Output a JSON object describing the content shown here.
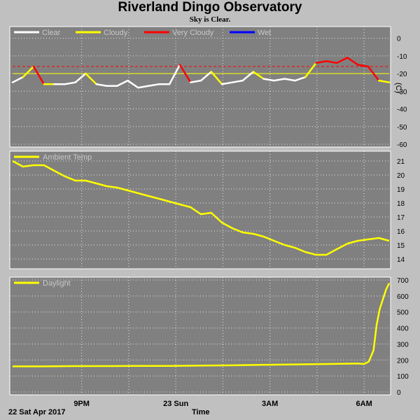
{
  "header": {
    "title": "Riverland Dingo Observatory",
    "subtitle": "Sky is Clear."
  },
  "x_axis": {
    "labels": [
      "9PM",
      "23 Sun",
      "3AM",
      "6AM"
    ],
    "date_label": "22 Sat Apr 2017",
    "axis_title": "Time"
  },
  "colors": {
    "clear": "#ffffff",
    "cloudy": "#ffff00",
    "very_cloudy": "#ff0000",
    "wet": "#0000ff",
    "plot_bg": "#808080",
    "frame_bg": "#c0c0c0",
    "threshold": "#ff0000"
  },
  "chart_data": [
    {
      "type": "line",
      "name": "sky",
      "legend": [
        "Clear",
        "Cloudy",
        "Very Cloudy",
        "Wet"
      ],
      "unit": "(C)",
      "ylim": [
        -60,
        5
      ],
      "yticks": [
        0,
        -10,
        -20,
        -30,
        -40,
        -50,
        -60
      ],
      "grid": true,
      "reference_lines": [
        -16,
        -20
      ],
      "x_hours": [
        0,
        0.33,
        0.67,
        1.0,
        1.33,
        1.67,
        2.0,
        2.33,
        2.67,
        3.0,
        3.33,
        3.67,
        4.0,
        4.33,
        4.67,
        5.0,
        5.33,
        5.67,
        6.0,
        6.33,
        6.67,
        7.0,
        7.33,
        7.67,
        8.0,
        8.33,
        8.67,
        9.0,
        9.33,
        9.67,
        10.0,
        10.33,
        10.67,
        11.0,
        11.33,
        11.67,
        12.0
      ],
      "values": [
        -25,
        -22,
        -16,
        -26,
        -26,
        -26,
        -25,
        -20,
        -26,
        -27,
        -27,
        -24,
        -28,
        -27,
        -26,
        -26,
        -15,
        -25,
        -24,
        -19,
        -26,
        -25,
        -24,
        -19,
        -23,
        -24,
        -23,
        -24,
        -22,
        -14,
        -13,
        -14,
        -11,
        -15,
        -16,
        -24,
        -25
      ],
      "state": [
        "Clear",
        "Cloudy",
        "Very Cloudy",
        "Cloudy",
        "Clear",
        "Clear",
        "Clear",
        "Cloudy",
        "Clear",
        "Clear",
        "Clear",
        "Clear",
        "Clear",
        "Clear",
        "Clear",
        "Clear",
        "Very Cloudy",
        "Clear",
        "Clear",
        "Cloudy",
        "Clear",
        "Clear",
        "Clear",
        "Cloudy",
        "Clear",
        "Clear",
        "Clear",
        "Clear",
        "Cloudy",
        "Very Cloudy",
        "Very Cloudy",
        "Very Cloudy",
        "Very Cloudy",
        "Very Cloudy",
        "Very Cloudy",
        "Cloudy",
        "Clear"
      ]
    },
    {
      "type": "line",
      "name": "temp",
      "legend": [
        "Ambient Temp"
      ],
      "ylim": [
        13.5,
        21.5
      ],
      "yticks": [
        21,
        20,
        19,
        18,
        17,
        16,
        15,
        14
      ],
      "grid": true,
      "x_hours": [
        0,
        0.33,
        0.67,
        1.0,
        1.33,
        1.67,
        2.0,
        2.33,
        2.67,
        3.0,
        3.33,
        3.67,
        4.0,
        4.33,
        4.67,
        5.0,
        5.33,
        5.67,
        6.0,
        6.33,
        6.67,
        7.0,
        7.33,
        7.67,
        8.0,
        8.33,
        8.67,
        9.0,
        9.33,
        9.67,
        10.0,
        10.33,
        10.67,
        11.0,
        11.33,
        11.67,
        12.0
      ],
      "values": [
        21.0,
        20.6,
        20.7,
        20.7,
        20.3,
        19.9,
        19.6,
        19.6,
        19.4,
        19.2,
        19.1,
        18.9,
        18.7,
        18.5,
        18.3,
        18.1,
        17.9,
        17.7,
        17.2,
        17.3,
        16.6,
        16.2,
        15.9,
        15.8,
        15.6,
        15.3,
        15.0,
        14.8,
        14.5,
        14.3,
        14.3,
        14.7,
        15.1,
        15.3,
        15.4,
        15.5,
        15.3
      ]
    },
    {
      "type": "line",
      "name": "daylight",
      "legend": [
        "Daylight"
      ],
      "ylim": [
        0,
        700
      ],
      "yticks": [
        700,
        600,
        500,
        400,
        300,
        200,
        100,
        0
      ],
      "grid": true,
      "x_hours": [
        0,
        1.0,
        2.0,
        3.0,
        4.0,
        5.0,
        6.0,
        7.0,
        8.0,
        9.0,
        10.0,
        11.0,
        11.2,
        11.35,
        11.5,
        11.6,
        11.7,
        11.8,
        11.9,
        12.0
      ],
      "values": [
        160,
        160,
        162,
        162,
        163,
        163,
        165,
        167,
        170,
        172,
        175,
        178,
        175,
        190,
        260,
        420,
        520,
        580,
        640,
        680
      ]
    }
  ]
}
